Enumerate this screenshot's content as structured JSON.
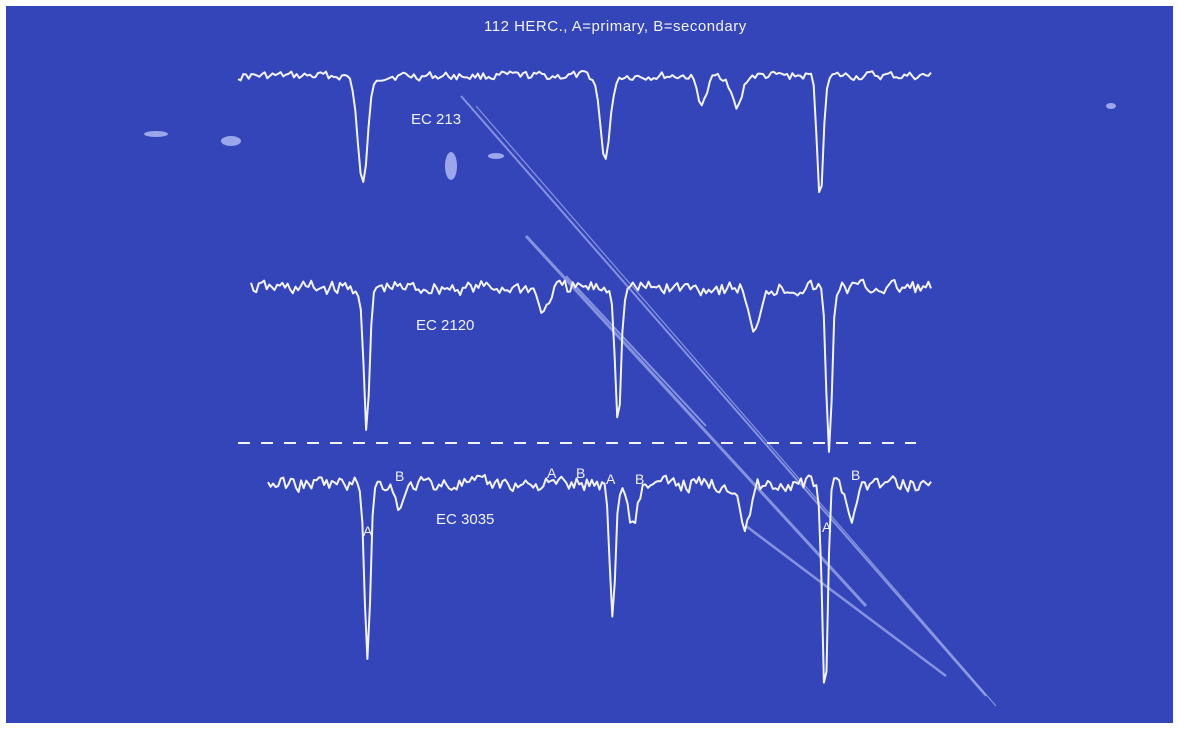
{
  "colors": {
    "background": "#3345b8",
    "ink": "#f2f2f2",
    "scratch": "#c8d2ff"
  },
  "chart_data": {
    "type": "line",
    "title": "112 HERC., A=primary, B=secondary",
    "xlabel": "",
    "ylabel": "",
    "grid": false,
    "series": [
      {
        "name": "EC 213",
        "dips": [
          {
            "x": 0.18,
            "depth": 1.0
          },
          {
            "x": 0.53,
            "depth": 0.75
          },
          {
            "x": 0.67,
            "depth": 0.25
          },
          {
            "x": 0.72,
            "depth": 0.3
          },
          {
            "x": 0.84,
            "depth": 1.15
          }
        ]
      },
      {
        "name": "EC 2120",
        "dips": [
          {
            "x": 0.17,
            "depth": 1.8
          },
          {
            "x": 0.43,
            "depth": 0.3
          },
          {
            "x": 0.54,
            "depth": 1.6
          },
          {
            "x": 0.74,
            "depth": 0.6
          },
          {
            "x": 0.85,
            "depth": 2.0
          }
        ]
      },
      {
        "name": "EC 3035",
        "dips": [
          {
            "x": 0.15,
            "depth": 2.2
          },
          {
            "x": 0.2,
            "depth": 0.3
          },
          {
            "x": 0.52,
            "depth": 1.7
          },
          {
            "x": 0.55,
            "depth": 0.5
          },
          {
            "x": 0.72,
            "depth": 0.6
          },
          {
            "x": 0.84,
            "depth": 2.7
          },
          {
            "x": 0.88,
            "depth": 0.4
          }
        ]
      }
    ],
    "annotations": {
      "line_marks": [
        "A",
        "B",
        "A",
        "B",
        "A",
        "B",
        "A",
        "B"
      ]
    }
  }
}
